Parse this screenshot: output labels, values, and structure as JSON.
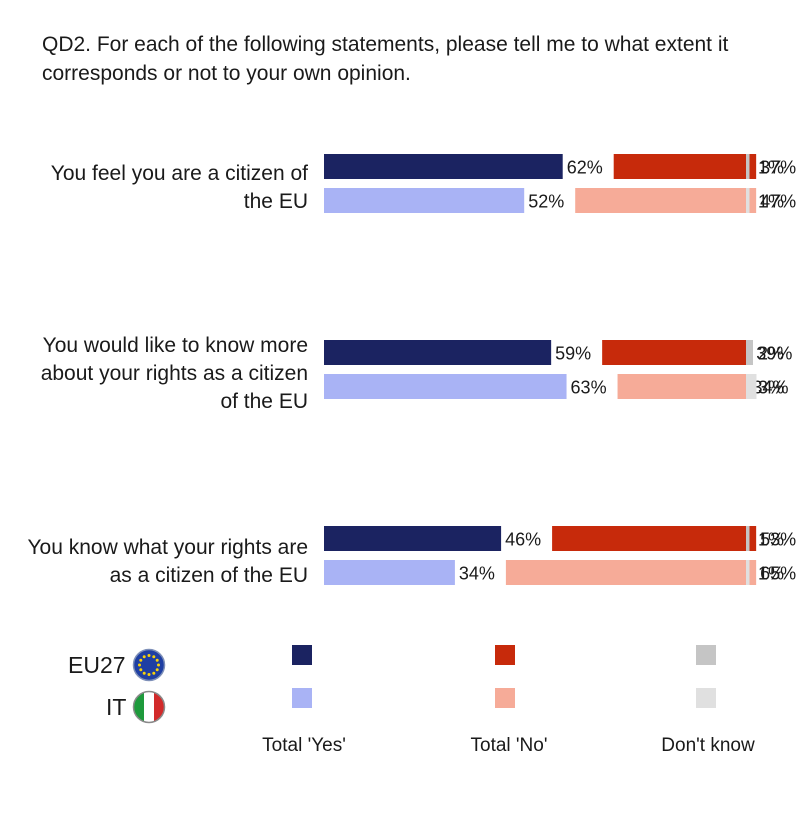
{
  "question": "QD2. For each of the following statements, please tell me to what extent it corresponds or not to your own opinion.",
  "colors": {
    "eu_yes": "#1b2361",
    "it_yes": "#a9b3f5",
    "eu_no": "#c72a0b",
    "it_no": "#f6ab98",
    "eu_dk": "#c5c5c5",
    "it_dk": "#e0e0e0"
  },
  "chart_data": {
    "type": "bar",
    "orientation": "horizontal-stacked",
    "categories": [
      "You feel you are a citizen of the EU",
      "You would like to know more about your rights as a citizen of the EU",
      "You know what your rights are as a citizen of the EU"
    ],
    "groups": [
      "EU27",
      "IT"
    ],
    "series": [
      {
        "name": "Total 'Yes'",
        "values": {
          "EU27": [
            62,
            59,
            46
          ],
          "IT": [
            52,
            63,
            34
          ]
        }
      },
      {
        "name": "Total 'No'",
        "values": {
          "EU27": [
            37,
            39,
            53
          ],
          "IT": [
            47,
            34,
            65
          ]
        }
      },
      {
        "name": "Don't know",
        "values": {
          "EU27": [
            1,
            2,
            1
          ],
          "IT": [
            1,
            3,
            1
          ]
        }
      }
    ],
    "value_suffix": "%"
  },
  "statements": [
    {
      "label_line1": "You feel you are a citizen of",
      "label_line2": "the EU",
      "label_line3": ""
    },
    {
      "label_line1": "You would like to know more",
      "label_line2": "about your rights as a citizen",
      "label_line3": "of the EU"
    },
    {
      "label_line1": "You know what your rights are",
      "label_line2": "as a citizen of the EU",
      "label_line3": ""
    }
  ],
  "legend": {
    "eu_label": "EU27",
    "it_label": "IT",
    "eu_icon": "eu-flag-icon",
    "it_icon": "italy-flag-icon",
    "yes_label": "Total 'Yes'",
    "no_label": "Total 'No'",
    "dk_label": "Don't know"
  }
}
